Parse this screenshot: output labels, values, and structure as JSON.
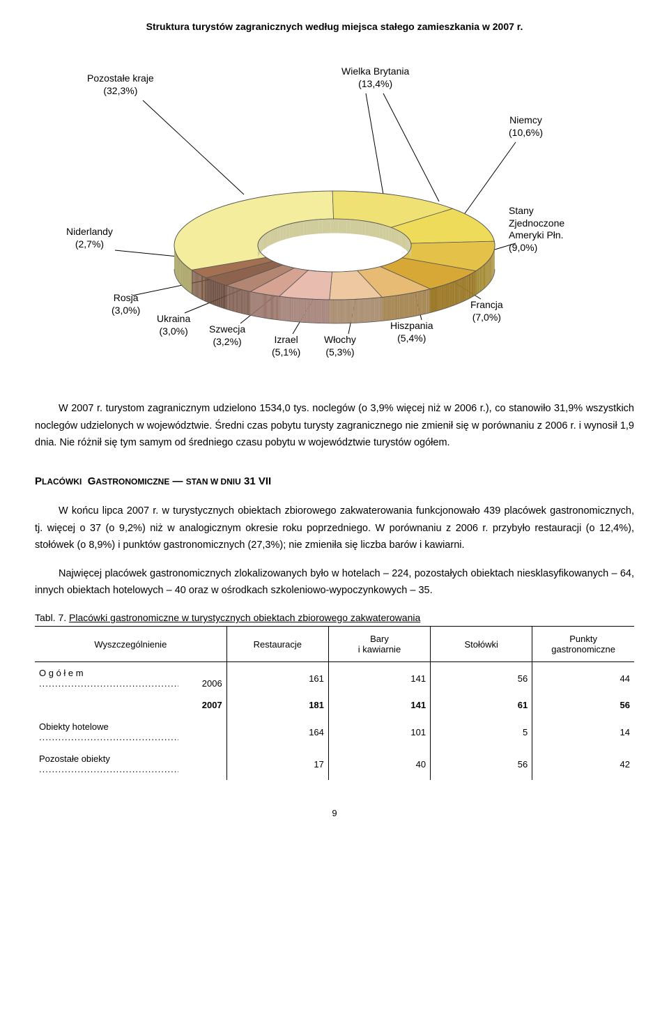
{
  "chart": {
    "title": "Struktura turystów zagranicznych według miejsca stałego zamieszkania w 2007 r.",
    "type": "pie-3d",
    "background_color": "#ffffff",
    "segments": [
      {
        "label_name": "Pozostałe kraje",
        "label_pct": "(32,3%)",
        "value": 32.3,
        "color": "#f3ed9d"
      },
      {
        "label_name": "Wielka Brytania",
        "label_pct": "(13,4%)",
        "value": 13.4,
        "color": "#efe173"
      },
      {
        "label_name": "Niemcy",
        "label_pct": "(10,6%)",
        "value": 10.6,
        "color": "#eedb59"
      },
      {
        "label_name": "Stany Zjednoczone Ameryki Płn.",
        "label_pct": "(9,0%)",
        "value": 9.0,
        "color": "#e4c149"
      },
      {
        "label_name": "Francja",
        "label_pct": "(7,0%)",
        "value": 7.0,
        "color": "#d8a837"
      },
      {
        "label_name": "Hiszpania",
        "label_pct": "(5,4%)",
        "value": 5.4,
        "color": "#e7bb74"
      },
      {
        "label_name": "Włochy",
        "label_pct": "(5,3%)",
        "value": 5.3,
        "color": "#edc8a0"
      },
      {
        "label_name": "Izrael",
        "label_pct": "(5,1%)",
        "value": 5.1,
        "color": "#e8bcae"
      },
      {
        "label_name": "Szwecja",
        "label_pct": "(3,2%)",
        "value": 3.2,
        "color": "#d6a393"
      },
      {
        "label_name": "Ukraina",
        "label_pct": "(3,0%)",
        "value": 3.0,
        "color": "#b38672"
      },
      {
        "label_name": "Rosja",
        "label_pct": "(3,0%)",
        "value": 3.0,
        "color": "#8e634e"
      },
      {
        "label_name": "Niderlandy",
        "label_pct": "(2,7%)",
        "value": 2.7,
        "color": "#a37152"
      }
    ],
    "inner_ring_color": "#f5f0b8",
    "stroke": "#555555",
    "label_fontsize": 14
  },
  "paragraphs": {
    "p1": "W 2007 r. turystom zagranicznym udzielono 1534,0 tys. noclegów (o 3,9% więcej niż w 2006 r.), co stanowiło 31,9% wszystkich noclegów udzielonych w województwie. Średni czas pobytu turysty zagranicznego nie zmienił się w porównaniu z 2006 r. i wynosił 1,9 dnia. Nie różnił się tym samym od średniego czasu pobytu w województwie turystów ogółem.",
    "section_head": "Placówki gastronomiczne — stan w dniu 31 VII",
    "p2": "W końcu lipca 2007 r. w turystycznych obiektach zbiorowego zakwaterowania funkcjonowało 439 placówek gastronomicznych, tj. więcej o 37 (o 9,2%) niż w analogicznym okresie roku poprzedniego. W porównaniu z 2006 r. przybyło restauracji (o 12,4%), stołówek (o 8,9%) i punktów gastronomicznych (27,3%); nie zmieniła się liczba barów i kawiarni.",
    "p3": "Najwięcej placówek gastronomicznych zlokalizowanych było w hotelach – 224, pozostałych obiektach niesklasyfikowanych – 64, innych obiektach hotelowych – 40 oraz w ośrodkach szkoleniowo-wypoczynkowych – 35."
  },
  "table": {
    "caption_num": "Tabl. 7.",
    "caption_text": "Placówki gastronomiczne w turystycznych obiektach zbiorowego zakwaterowania",
    "columns": [
      "Wyszczególnienie",
      "Restauracje",
      "Bary i kawiarnie",
      "Stołówki",
      "Punkty gastronomiczne"
    ],
    "rows": [
      {
        "label": "O g ó ł e m",
        "year": "2006",
        "c1": "161",
        "c2": "141",
        "c3": "56",
        "c4": "44",
        "bold": false
      },
      {
        "label": "",
        "year": "2007",
        "c1": "181",
        "c2": "141",
        "c3": "61",
        "c4": "56",
        "bold": true
      },
      {
        "label": "Obiekty hotelowe",
        "year": "",
        "c1": "164",
        "c2": "101",
        "c3": "5",
        "c4": "14",
        "bold": false
      },
      {
        "label": "Pozostałe obiekty",
        "year": "",
        "c1": "17",
        "c2": "40",
        "c3": "56",
        "c4": "42",
        "bold": false
      }
    ]
  },
  "page_number": "9"
}
